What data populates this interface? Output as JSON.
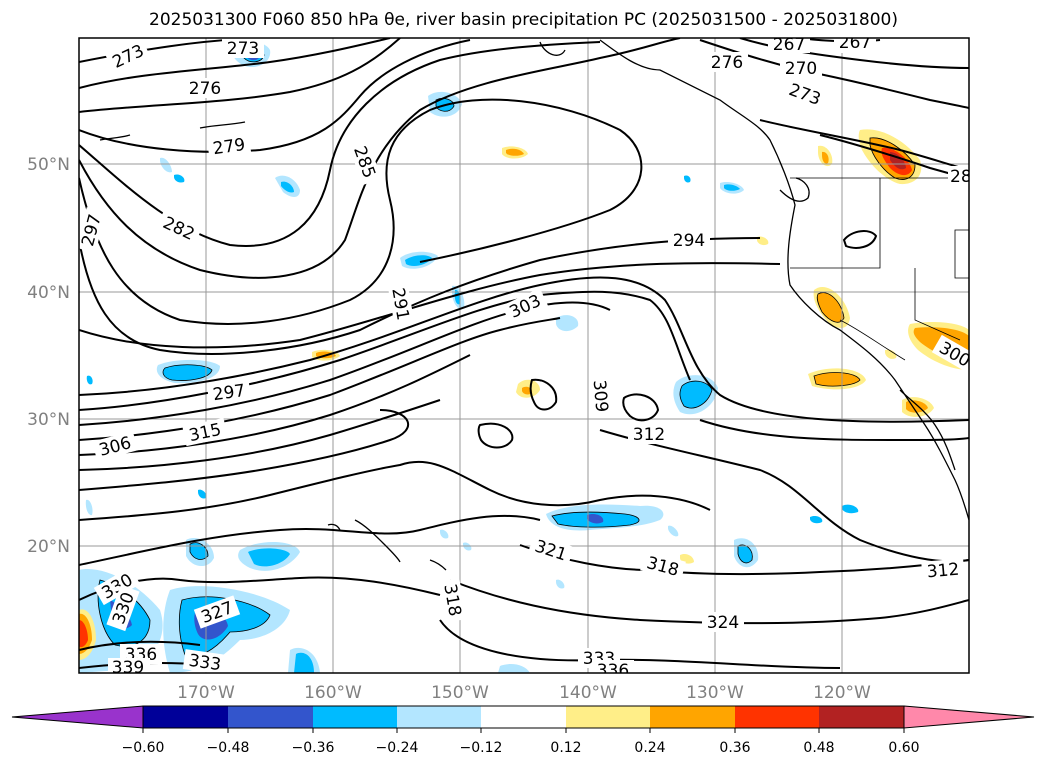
{
  "title": "2025031300 F060 850 hPa θe, river basin precipitation PC (2025031500 - 2025031800)",
  "map": {
    "lat_labels": [
      "50°N",
      "40°N",
      "30°N",
      "20°N"
    ],
    "lon_labels": [
      "170°W",
      "160°W",
      "150°W",
      "140°W",
      "130°W",
      "120°W"
    ],
    "contour_labels": [
      "273",
      "273",
      "276",
      "267",
      "267",
      "270",
      "273",
      "276",
      "279",
      "285",
      "282",
      "297",
      "294",
      "291",
      "303",
      "297",
      "306",
      "315",
      "309",
      "312",
      "321",
      "318",
      "312",
      "330",
      "330",
      "327",
      "324",
      "336",
      "333",
      "333",
      "336",
      "339",
      "300",
      "28"
    ]
  },
  "colorbar": {
    "ticks": [
      "−0.60",
      "−0.48",
      "−0.36",
      "−0.24",
      "−0.12",
      "0.12",
      "0.24",
      "0.36",
      "0.48",
      "0.60"
    ],
    "colors": [
      "#9933cc",
      "#000099",
      "#3355cc",
      "#00bbff",
      "#b3e6ff",
      "#ffffff",
      "#ffee88",
      "#ffa500",
      "#ff3300",
      "#b22222",
      "#ff88aa"
    ]
  }
}
